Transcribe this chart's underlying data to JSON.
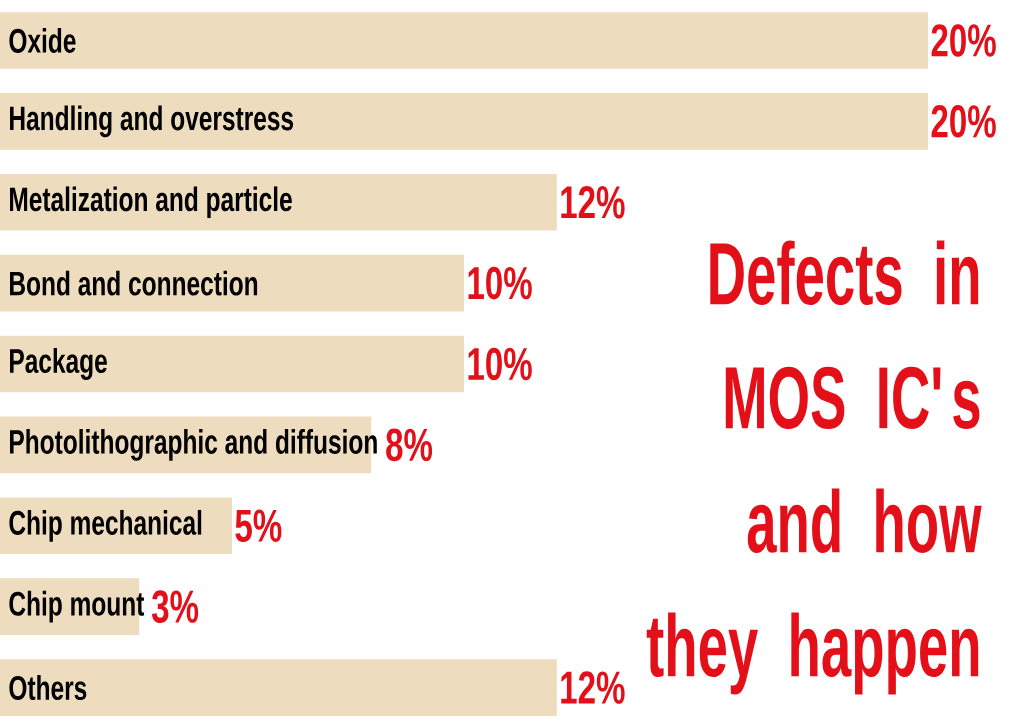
{
  "chart_data": {
    "type": "bar",
    "orientation": "horizontal",
    "title": "Defects in MOS IC's and how they happen",
    "categories": [
      "Oxide",
      "Handling and overstress",
      "Metalization and particle",
      "Bond and connection",
      "Package",
      "Photolithographic and diffusion",
      "Chip mechanical",
      "Chip mount",
      "Others"
    ],
    "values": [
      20,
      20,
      12,
      10,
      10,
      8,
      5,
      3,
      12
    ],
    "value_labels": [
      "20%",
      "20%",
      "12%",
      "10%",
      "10%",
      "8%",
      "5%",
      "3%",
      "12%"
    ],
    "color": "#eedcbf",
    "tick_labels": false
  }
}
